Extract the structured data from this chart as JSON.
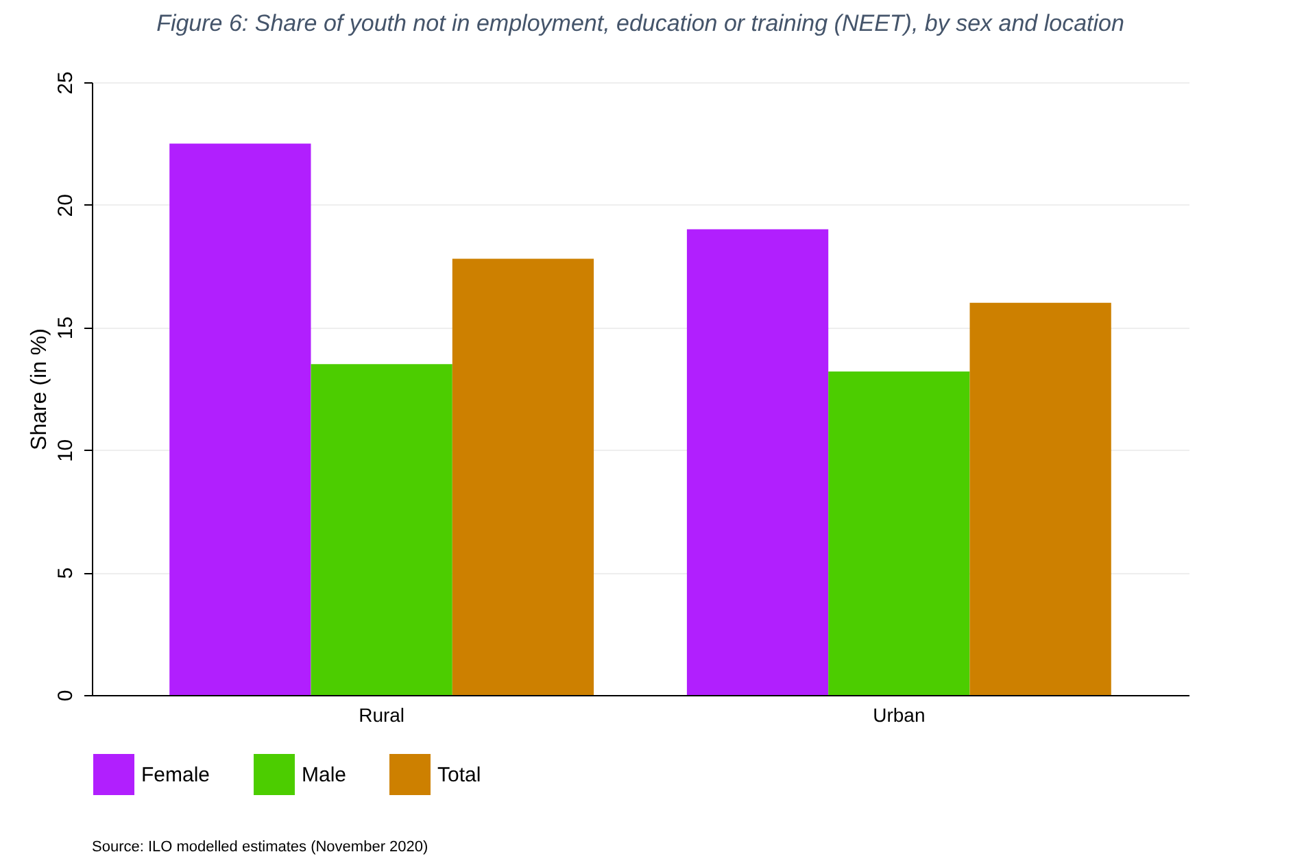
{
  "chart_data": {
    "type": "bar",
    "title": "Figure 6: Share of youth not in employment, education or training (NEET), by sex and location",
    "ylabel": "Share (in %)",
    "categories": [
      "Rural",
      "Urban"
    ],
    "series": [
      {
        "name": "Female",
        "color": "#b11ffe",
        "values": [
          22.5,
          19.0
        ]
      },
      {
        "name": "Male",
        "color": "#4ccd00",
        "values": [
          13.5,
          13.2
        ]
      },
      {
        "name": "Total",
        "color": "#cd8000",
        "values": [
          17.8,
          16.0
        ]
      }
    ],
    "ylim": [
      0,
      25
    ],
    "yticks": [
      0,
      5,
      10,
      15,
      20,
      25
    ],
    "grid": "y",
    "legend": "bottom",
    "annotations": [
      "Source: ILO modelled estimates (November 2020)"
    ]
  }
}
